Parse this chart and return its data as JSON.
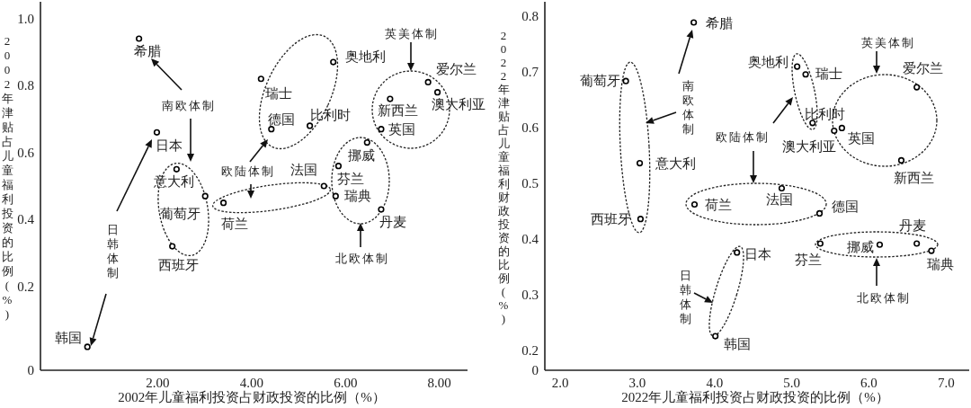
{
  "chart_data": [
    {
      "type": "scatter",
      "xlabel": "2002年儿童福利投资占财政投资的比例（%）",
      "ylabel": "2002年津贴占儿童福利投资的比例(%)",
      "color": "#000000",
      "marker": "circle",
      "x": [
        1.6,
        1.98,
        2.4,
        3.01,
        2.31,
        0.5,
        3.4,
        5.54,
        4.2,
        5.74,
        4.42,
        5.24,
        7.76,
        7.96,
        6.95,
        6.76,
        6.46,
        5.85,
        5.79,
        6.76
      ],
      "values": [
        0.94,
        0.66,
        0.55,
        0.47,
        0.32,
        0.02,
        0.45,
        0.5,
        0.82,
        0.87,
        0.67,
        0.68,
        0.81,
        0.78,
        0.76,
        0.67,
        0.63,
        0.56,
        0.47,
        0.43
      ],
      "xlim": [
        -0.5,
        8.6
      ],
      "ylim": [
        -0.05,
        1.05
      ],
      "xticks": [
        {
          "value": 2,
          "label": "2.00"
        },
        {
          "value": 4,
          "label": "4.00"
        },
        {
          "value": 6,
          "label": "6.00"
        },
        {
          "value": 8,
          "label": "8.00"
        }
      ],
      "yticks": [
        {
          "value": -0.05,
          "label": "0"
        },
        0.2,
        0.4,
        0.6,
        0.8,
        {
          "value": 1,
          "label": "1.0"
        }
      ],
      "annotations": [
        {
          "text": "希腊",
          "x": 1.6,
          "y": 0.94
        },
        {
          "text": "日本",
          "x": 1.98,
          "y": 0.66
        },
        {
          "text": "意大利",
          "x": 2.4,
          "y": 0.55
        },
        {
          "text": "葡萄牙",
          "x": 3.01,
          "y": 0.47
        },
        {
          "text": "西班牙",
          "x": 2.31,
          "y": 0.32
        },
        {
          "text": "韩国",
          "x": 0.5,
          "y": 0.02
        },
        {
          "text": "荷兰",
          "x": 3.4,
          "y": 0.45
        },
        {
          "text": "法国",
          "x": 5.54,
          "y": 0.5
        },
        {
          "text": "瑞士",
          "x": 4.2,
          "y": 0.82
        },
        {
          "text": "奥地利",
          "x": 5.74,
          "y": 0.87
        },
        {
          "text": "德国",
          "x": 4.42,
          "y": 0.67
        },
        {
          "text": "比利时",
          "x": 5.24,
          "y": 0.68
        },
        {
          "text": "爱尔兰",
          "x": 7.76,
          "y": 0.81
        },
        {
          "text": "澳大利亚",
          "x": 7.96,
          "y": 0.78
        },
        {
          "text": "新西兰",
          "x": 6.95,
          "y": 0.76
        },
        {
          "text": "英国",
          "x": 6.76,
          "y": 0.67
        },
        {
          "text": "挪威",
          "x": 6.46,
          "y": 0.63
        },
        {
          "text": "芬兰",
          "x": 5.85,
          "y": 0.56
        },
        {
          "text": "瑞典",
          "x": 5.79,
          "y": 0.47
        },
        {
          "text": "丹麦",
          "x": 6.76,
          "y": 0.43
        },
        "南欧体制",
        "日韩体制",
        "欧陆体制",
        "英美体制",
        "北欧体制"
      ]
    },
    {
      "type": "scatter",
      "xlabel": "2022年儿童福利投资占财政投资的比例（%）",
      "ylabel": "2022年津贴占儿童福利财政投资的比例(%)",
      "color": "#000000",
      "marker": "circle",
      "x": [
        3.73,
        2.85,
        3.03,
        3.04,
        4.01,
        4.29,
        3.74,
        4.87,
        5.36,
        5.07,
        5.18,
        5.27,
        5.55,
        5.65,
        6.62,
        6.42,
        5.37,
        6.14,
        6.62,
        6.81
      ],
      "values": [
        0.788,
        0.683,
        0.536,
        0.436,
        0.226,
        0.376,
        0.462,
        0.491,
        0.446,
        0.709,
        0.695,
        0.608,
        0.594,
        0.599,
        0.672,
        0.541,
        0.392,
        0.39,
        0.392,
        0.379
      ],
      "xlim": [
        1.8,
        7.3
      ],
      "ylim": [
        0.165,
        0.825
      ],
      "xticks": [
        {
          "value": 2,
          "label": "2.0"
        },
        {
          "value": 3,
          "label": "3.0"
        },
        {
          "value": 4,
          "label": "4.0"
        },
        {
          "value": 5,
          "label": "5.0"
        },
        {
          "value": 6,
          "label": "6.0"
        },
        {
          "value": 7,
          "label": "7.0"
        }
      ],
      "yticks": [
        {
          "value": 0.165,
          "label": "0"
        },
        0.2,
        0.3,
        0.4,
        0.5,
        0.6,
        0.7,
        0.8
      ],
      "annotations": [
        {
          "text": "希腊",
          "x": 3.73,
          "y": 0.788
        },
        {
          "text": "葡萄牙",
          "x": 2.85,
          "y": 0.683
        },
        {
          "text": "意大利",
          "x": 3.03,
          "y": 0.536
        },
        {
          "text": "西班牙",
          "x": 3.04,
          "y": 0.436
        },
        {
          "text": "韩国",
          "x": 4.01,
          "y": 0.226
        },
        {
          "text": "日本",
          "x": 4.29,
          "y": 0.376
        },
        {
          "text": "荷兰",
          "x": 3.74,
          "y": 0.462
        },
        {
          "text": "法国",
          "x": 4.87,
          "y": 0.491
        },
        {
          "text": "德国",
          "x": 5.36,
          "y": 0.446
        },
        {
          "text": "奥地利",
          "x": 5.07,
          "y": 0.709
        },
        {
          "text": "瑞士",
          "x": 5.18,
          "y": 0.695
        },
        {
          "text": "比利时",
          "x": 5.27,
          "y": 0.608
        },
        {
          "text": "澳大利亚",
          "x": 5.55,
          "y": 0.594
        },
        {
          "text": "英国",
          "x": 5.65,
          "y": 0.599
        },
        {
          "text": "爱尔兰",
          "x": 6.62,
          "y": 0.672
        },
        {
          "text": "新西兰",
          "x": 6.42,
          "y": 0.541
        },
        {
          "text": "芬兰",
          "x": 5.37,
          "y": 0.392
        },
        {
          "text": "挪威",
          "x": 6.14,
          "y": 0.39
        },
        {
          "text": "丹麦",
          "x": 6.62,
          "y": 0.392
        },
        {
          "text": "瑞典",
          "x": 6.81,
          "y": 0.379
        },
        "南欧体制",
        "日韩体制",
        "欧陆体制",
        "英美体制",
        "北欧体制"
      ]
    }
  ]
}
